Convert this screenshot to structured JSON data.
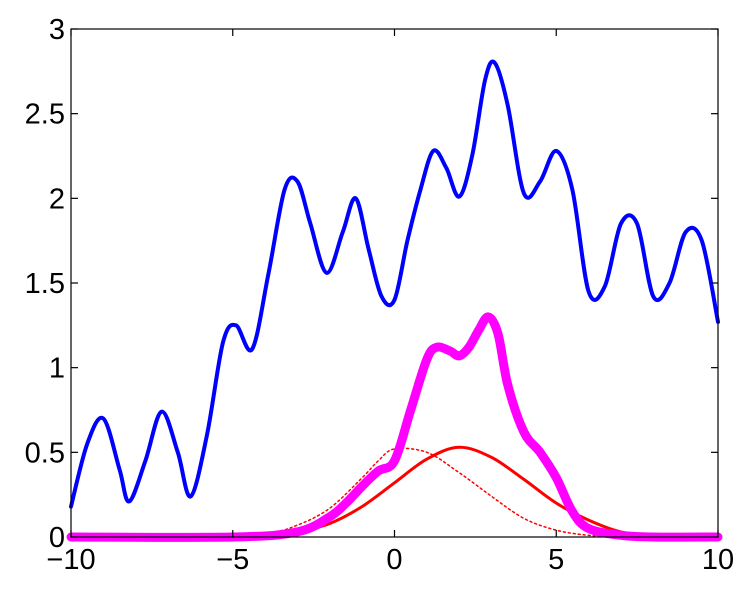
{
  "chart_data": {
    "type": "line",
    "title": "",
    "xlabel": "",
    "ylabel": "",
    "xlim": [
      -10,
      10
    ],
    "ylim": [
      0,
      3
    ],
    "grid": false,
    "x_ticks": [
      -10,
      -5,
      0,
      5,
      10
    ],
    "y_ticks": [
      0,
      0.5,
      1,
      1.5,
      2,
      2.5,
      3
    ],
    "x_tick_labels": [
      "−10",
      "−5",
      "0",
      "5",
      "10"
    ],
    "y_tick_labels": [
      "0",
      "0.5",
      "1",
      "1.5",
      "2",
      "2.5",
      "3"
    ],
    "series": [
      {
        "style": "solid",
        "color": "#0000ff",
        "width": "thick",
        "x": [
          -10,
          -9.5,
          -9,
          -8.5,
          -8.2,
          -7.7,
          -7.2,
          -6.7,
          -6.3,
          -5.8,
          -5.3,
          -4.9,
          -4.4,
          -3.9,
          -3.4,
          -3.0,
          -2.6,
          -2.1,
          -1.6,
          -1.2,
          -0.8,
          -0.4,
          0,
          0.4,
          0.8,
          1.2,
          1.6,
          2.0,
          2.4,
          2.8,
          3.1,
          3.5,
          4.0,
          4.5,
          5.0,
          5.5,
          6.0,
          6.5,
          7.0,
          7.5,
          8.0,
          8.5,
          9.0,
          9.5,
          10
        ],
        "y": [
          0.18,
          0.55,
          0.7,
          0.4,
          0.21,
          0.45,
          0.74,
          0.5,
          0.24,
          0.6,
          1.15,
          1.25,
          1.11,
          1.55,
          2.05,
          2.1,
          1.85,
          1.56,
          1.8,
          2.0,
          1.7,
          1.42,
          1.4,
          1.75,
          2.05,
          2.28,
          2.18,
          2.01,
          2.25,
          2.7,
          2.8,
          2.55,
          2.03,
          2.1,
          2.28,
          2.05,
          1.45,
          1.48,
          1.85,
          1.85,
          1.42,
          1.5,
          1.8,
          1.75,
          1.27
        ]
      },
      {
        "style": "solid",
        "color": "#ff00ff",
        "width": "extra-thick",
        "x": [
          -10,
          -5,
          -3,
          -2,
          -1.5,
          -1,
          -0.5,
          0,
          0.5,
          1.0,
          1.3,
          1.7,
          2.0,
          2.3,
          2.6,
          2.9,
          3.2,
          3.5,
          4.0,
          4.5,
          5.0,
          5.5,
          6.0,
          7.0,
          8.0,
          10
        ],
        "y": [
          0,
          0,
          0.03,
          0.12,
          0.2,
          0.3,
          0.39,
          0.45,
          0.75,
          1.05,
          1.12,
          1.1,
          1.07,
          1.12,
          1.22,
          1.3,
          1.2,
          0.9,
          0.62,
          0.5,
          0.35,
          0.15,
          0.05,
          0.01,
          0,
          0
        ]
      },
      {
        "style": "solid",
        "color": "#ff0000",
        "width": "medium",
        "x": [
          -10,
          -6,
          -4,
          -3,
          -2,
          -1,
          0,
          1,
          2,
          3,
          4,
          5,
          6,
          7,
          8,
          10
        ],
        "y": [
          0,
          0,
          0.01,
          0.03,
          0.08,
          0.18,
          0.32,
          0.46,
          0.53,
          0.47,
          0.34,
          0.2,
          0.1,
          0.03,
          0.01,
          0
        ]
      },
      {
        "style": "dotted",
        "color": "#ff0000",
        "width": "thin",
        "x": [
          -10,
          -6,
          -4,
          -3,
          -2,
          -1,
          -0.5,
          0,
          1,
          2,
          3,
          4,
          5,
          6,
          7,
          10
        ],
        "y": [
          0,
          0,
          0.02,
          0.07,
          0.17,
          0.35,
          0.45,
          0.52,
          0.5,
          0.38,
          0.24,
          0.11,
          0.04,
          0.01,
          0,
          0
        ]
      }
    ]
  }
}
